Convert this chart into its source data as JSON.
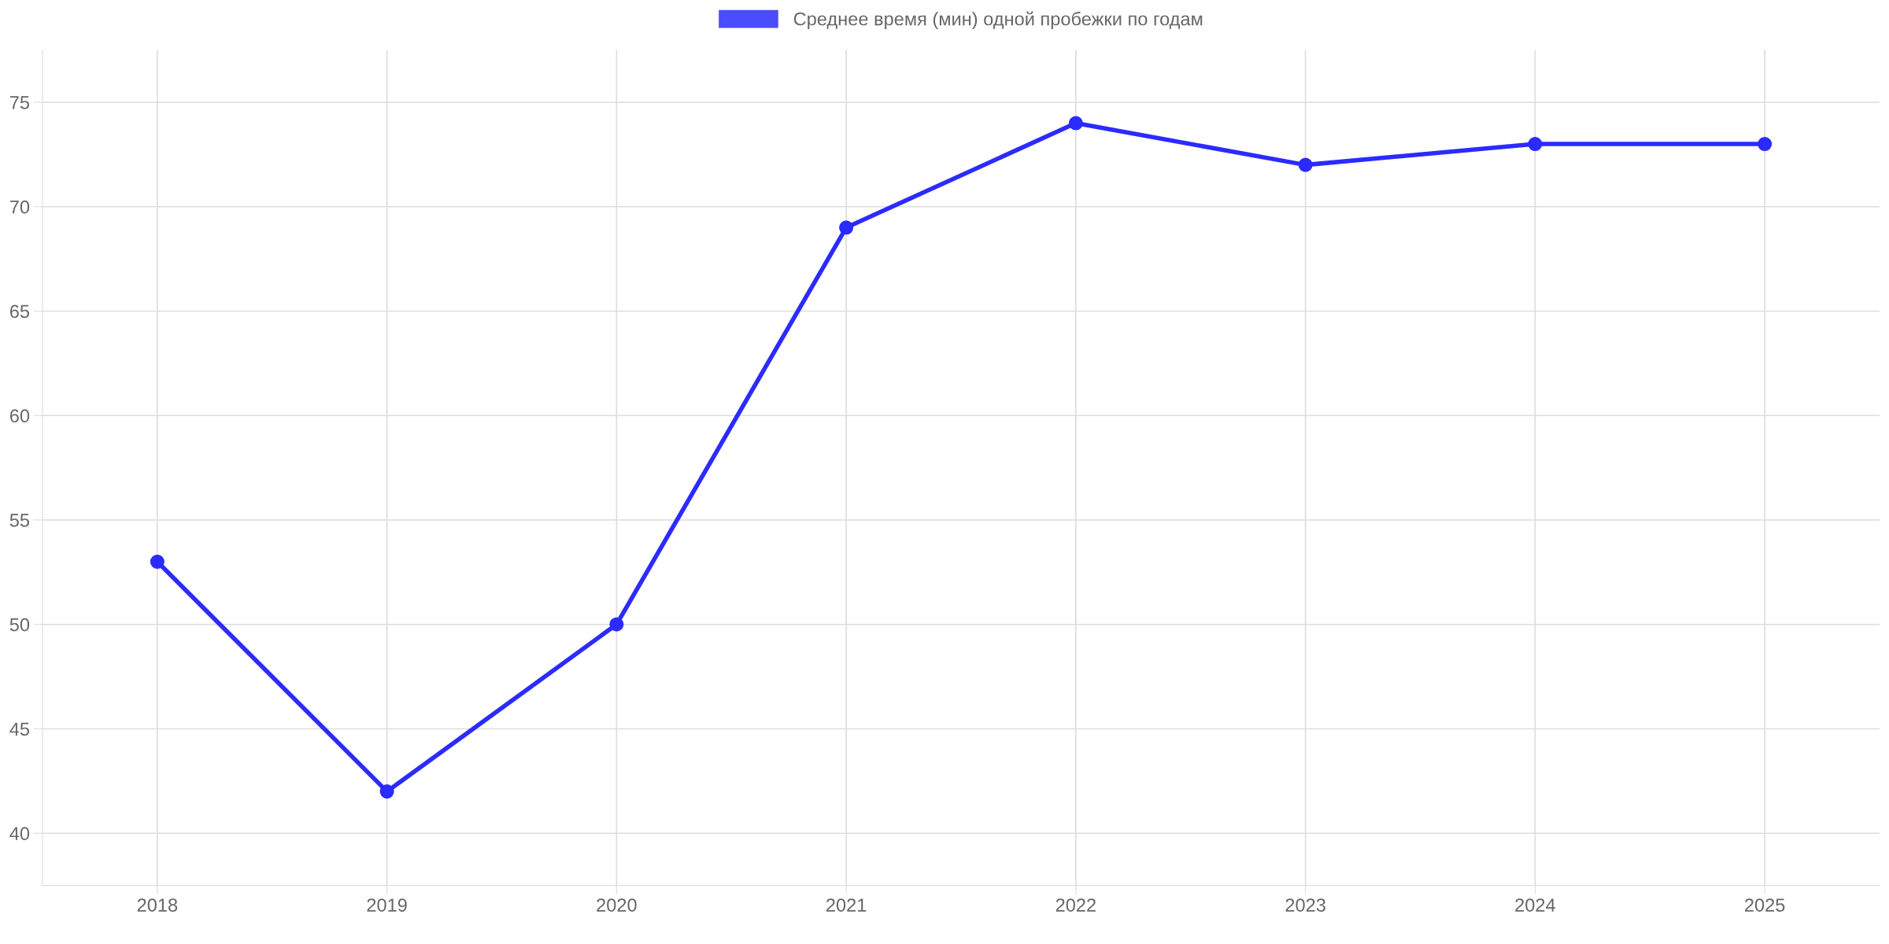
{
  "chart_data": {
    "type": "line",
    "categories": [
      "2018",
      "2019",
      "2020",
      "2021",
      "2022",
      "2023",
      "2024",
      "2025"
    ],
    "series": [
      {
        "name": "Среднее время (мин) одной пробежки по годам",
        "color": "#2b2bff",
        "values": [
          53,
          42,
          50,
          69,
          74,
          72,
          73,
          73
        ]
      }
    ],
    "ylim": [
      37.5,
      77.5
    ],
    "yticks": [
      40,
      45,
      50,
      55,
      60,
      65,
      70,
      75
    ],
    "grid": true,
    "legend": "top",
    "marker": "circle",
    "line_style": "solid"
  }
}
